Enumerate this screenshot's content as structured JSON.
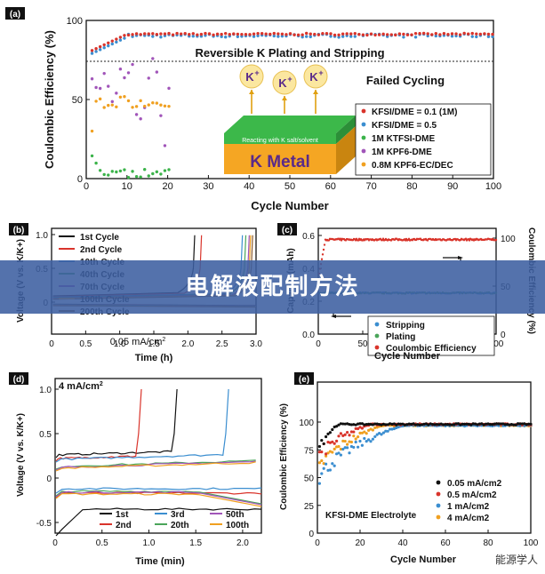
{
  "banner": {
    "title": "电解液配制方法"
  },
  "watermark": "能源学人",
  "panels": {
    "a": {
      "label": "(a)",
      "note_top": "Reversible K Plating and Stripping",
      "note_bottom": "Failed Cycling",
      "graphic": {
        "ion_label": "K",
        "ion_charge": "+",
        "layer_text": "Reacting with K salt/solvent",
        "block_text": "K  Metal"
      }
    },
    "b": {
      "label": "(b)",
      "annotation": "0.05 mA/cm",
      "annotation_sup": "2"
    },
    "c": {
      "label": "(c)"
    },
    "d": {
      "label": "(d)",
      "annotation": "4 mA/cm",
      "annotation_sup": "2"
    },
    "e": {
      "label": "(e)",
      "annotation": "KFSI-DME Electrolyte"
    }
  },
  "chart_data": [
    {
      "id": "a",
      "type": "scatter",
      "xlabel": "Cycle Number",
      "ylabel": "Coulombic Efficiency (%)",
      "xlim": [
        0,
        100
      ],
      "ylim": [
        0,
        100
      ],
      "xticks": [
        0,
        10,
        20,
        30,
        40,
        50,
        60,
        70,
        80,
        90,
        100
      ],
      "yticks": [
        0,
        50,
        100
      ],
      "reference_line_y": 80,
      "legend_position": "bottom-right",
      "series": [
        {
          "name": "KFSI/DME = 0.1 (1M)",
          "color": "#d9342b",
          "shape": "circle",
          "summary": {
            "x_range": [
              1,
              100
            ],
            "y_start": 86,
            "y_plateau": 98.5
          }
        },
        {
          "name": "KFSI/DME = 0.5",
          "color": "#3b8ed0",
          "shape": "circle",
          "summary": {
            "x_range": [
              1,
              100
            ],
            "y_start": 84,
            "y_plateau": 97.5
          }
        },
        {
          "name": "1M KTFSI-DME",
          "color": "#3bb34a",
          "shape": "circle",
          "summary": {
            "x_range": [
              1,
              20
            ],
            "y_range": [
              0,
              20
            ]
          }
        },
        {
          "name": "1M KPF6-DME",
          "name_sub": "6",
          "color": "#a155b9",
          "shape": "circle",
          "summary": {
            "x_range": [
              1,
              20
            ],
            "y_range": [
              20,
              82
            ]
          }
        },
        {
          "name": "0.8M KPF6-EC/DEC",
          "name_sub": "6",
          "color": "#f0a020",
          "shape": "circle",
          "summary": {
            "x_range": [
              1,
              20
            ],
            "y_range": [
              25,
              58
            ]
          }
        }
      ]
    },
    {
      "id": "b",
      "type": "line",
      "xlabel": "Time (h)",
      "ylabel": "Voltage (V vs. K/K+)",
      "xlim": [
        0,
        3.0
      ],
      "ylim": [
        -0.1,
        1.0
      ],
      "xticks": [
        "0",
        "0.5",
        "1.0",
        "1.5",
        "2.0",
        "2.5",
        "3.0"
      ],
      "yticks": [
        "0",
        "0.5",
        "1.0"
      ],
      "legend_position": "top-left",
      "series": [
        {
          "name": "1st Cycle",
          "color": "#111111",
          "rise_time_h": 2.1
        },
        {
          "name": "2nd Cycle",
          "color": "#d9342b",
          "rise_time_h": 2.2
        },
        {
          "name": "10th Cycle",
          "color": "#3b8ed0",
          "rise_time_h": 2.8
        },
        {
          "name": "40th Cycle",
          "color": "#4aa55a",
          "rise_time_h": 2.85
        },
        {
          "name": "70th Cycle",
          "color": "#a155b9",
          "rise_time_h": 2.9
        },
        {
          "name": "100th Cycle",
          "color": "#f0a020",
          "rise_time_h": 2.92
        },
        {
          "name": "200th Cycle",
          "color": "#8b5a2b",
          "rise_time_h": 2.95
        }
      ]
    },
    {
      "id": "c",
      "type": "scatter",
      "xlabel": "Cycle Number",
      "ylabel": "Capacity (mAh)",
      "ylabel_right": "Coulombic Efficiency (%)",
      "xlim": [
        0,
        200
      ],
      "ylim": [
        0,
        0.6
      ],
      "ylim_right": [
        0,
        100
      ],
      "xticks": [
        0,
        50,
        100,
        150,
        200
      ],
      "yticks": [
        "0.0",
        "0.2",
        "0.4",
        "0.6"
      ],
      "yticks_right": [
        0,
        50,
        100
      ],
      "legend_position": "bottom-right",
      "series": [
        {
          "name": "Stripping",
          "color": "#3b8ed0",
          "summary": {
            "value": 0.25
          }
        },
        {
          "name": "Plating",
          "color": "#4aa55a",
          "summary": {
            "value": 0.25
          }
        },
        {
          "name": "Coulombic Efficiency",
          "color": "#d9342b",
          "axis": "right",
          "summary": {
            "y_start": 58,
            "y_plateau": 98.5
          }
        }
      ]
    },
    {
      "id": "d",
      "type": "line",
      "xlabel": "Time (min)",
      "ylabel": "Voltage (V vs. K/K+)",
      "xlim": [
        0,
        2.2
      ],
      "ylim": [
        -0.75,
        1.0
      ],
      "xticks": [
        "0",
        "0.5",
        "1.0",
        "1.5",
        "2.0"
      ],
      "yticks": [
        "-0.5",
        "0",
        "0.5",
        "1.0"
      ],
      "legend_position": "bottom",
      "series": [
        {
          "name": "1st",
          "color": "#111111",
          "end_min": 1.3
        },
        {
          "name": "2nd",
          "color": "#d9342b",
          "end_min": 0.92
        },
        {
          "name": "3rd",
          "color": "#3b8ed0",
          "end_min": 1.85
        },
        {
          "name": "20th",
          "color": "#4aa55a",
          "end_min": 2.2
        },
        {
          "name": "50th",
          "color": "#a155b9",
          "end_min": 2.2
        },
        {
          "name": "100th",
          "color": "#f0a020",
          "end_min": 2.2
        }
      ]
    },
    {
      "id": "e",
      "type": "scatter",
      "xlabel": "Cycle Number",
      "ylabel": "Coulombic Efficiency (%)",
      "xlim": [
        0,
        100
      ],
      "ylim": [
        0,
        100
      ],
      "xticks": [
        0,
        20,
        40,
        60,
        80,
        100
      ],
      "yticks": [
        0,
        25,
        50,
        75,
        100
      ],
      "legend_position": "bottom-right",
      "series": [
        {
          "name": "0.05 mA/cm2",
          "color": "#111111",
          "summary": {
            "y_start": 70,
            "reach_cycle": 10,
            "y_plateau": 98
          }
        },
        {
          "name": "0.5 mA/cm2",
          "color": "#d9342b",
          "summary": {
            "y_start": 62,
            "reach_cycle": 25,
            "y_plateau": 98
          }
        },
        {
          "name": "1 mA/cm2",
          "color": "#3b8ed0",
          "summary": {
            "y_start": 40,
            "reach_cycle": 40,
            "y_plateau": 97
          }
        },
        {
          "name": "4 mA/cm2",
          "color": "#f0a020",
          "summary": {
            "y_start": 50,
            "reach_cycle": 30,
            "y_plateau": 97
          }
        }
      ]
    }
  ]
}
